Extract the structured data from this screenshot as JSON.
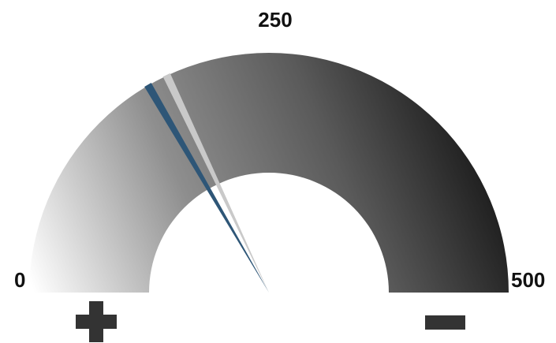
{
  "chart_data": {
    "type": "gauge",
    "min": 0,
    "max": 500,
    "scale_labels": [
      "0",
      "250",
      "500"
    ],
    "needles": [
      {
        "value": 166,
        "color": "#2e5677"
      },
      {
        "value": 180,
        "color": "#c9c9c9"
      }
    ],
    "gradient_colors": [
      "#ffffff",
      "#8e8e8e",
      "#5a5a5a",
      "#0b0b0b"
    ],
    "left_symbol": "plus",
    "right_symbol": "minus",
    "symbol_color": "#333333"
  }
}
